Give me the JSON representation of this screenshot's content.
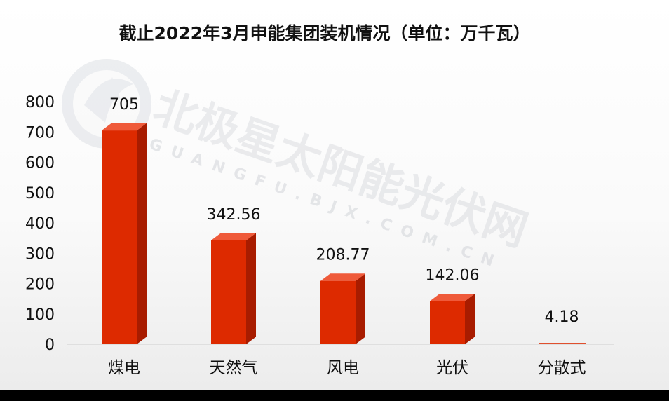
{
  "watermark": {
    "main": "北极星太阳能光伏网",
    "sub": "GUANGFU.BJX.COM.CN"
  },
  "chart_data": {
    "type": "bar",
    "title": "截止2022年3月申能集团装机情况（单位：万千瓦）",
    "categories": [
      "煤电",
      "天然气",
      "风电",
      "光伏",
      "分散式"
    ],
    "values": [
      705,
      342.56,
      208.77,
      142.06,
      4.18
    ],
    "value_labels": [
      "705",
      "342.56",
      "208.77",
      "142.06",
      "4.18"
    ],
    "yticks": [
      "0",
      "100",
      "200",
      "300",
      "400",
      "500",
      "600",
      "700",
      "800"
    ],
    "ylim": [
      0,
      800
    ],
    "grid": false,
    "legend": "none",
    "bar_color": "#dd2a00",
    "bar_side_color": "#a81c00",
    "bar_top_color": "#ef5a3a"
  }
}
